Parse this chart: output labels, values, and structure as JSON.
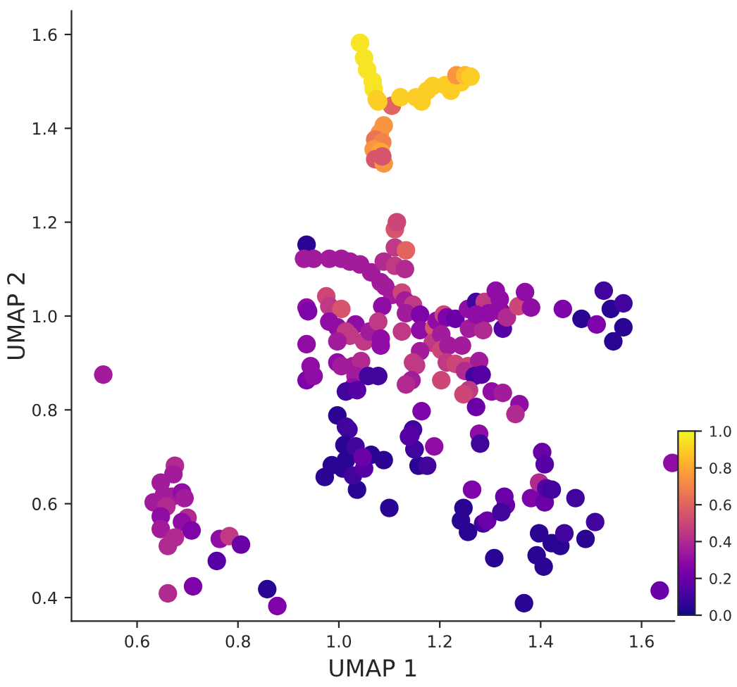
{
  "chart_data": {
    "type": "scatter",
    "xlabel": "UMAP 1",
    "ylabel": "UMAP 2",
    "x": [
      1.105,
      1.122,
      1.153,
      1.164,
      1.175,
      1.186,
      1.211,
      1.222,
      1.242,
      1.233,
      1.25,
      1.261,
      1.042,
      1.05,
      1.056,
      1.067,
      1.069,
      1.075,
      1.078,
      1.089,
      1.081,
      1.072,
      1.086,
      1.069,
      1.083,
      1.072,
      1.089,
      1.086,
      1.111,
      1.115,
      0.936,
      1.111,
      1.133,
      0.931,
      0.95,
      0.981,
      1.005,
      1.022,
      1.042,
      1.064,
      1.089,
      1.111,
      1.131,
      1.083,
      1.092,
      1.106,
      1.125,
      1.131,
      1.147,
      1.133,
      1.161,
      0.975,
      0.981,
      1.005,
      0.936,
      0.939,
      1.086,
      0.981,
      0.997,
      1.033,
      1.014,
      1.022,
      0.997,
      1.05,
      1.061,
      1.078,
      1.083,
      1.083,
      1.125,
      1.161,
      0.936,
      1.189,
      1.194,
      1.208,
      1.214,
      1.231,
      1.256,
      1.272,
      1.289,
      1.311,
      1.319,
      1.322,
      1.325,
      1.333,
      1.356,
      1.369,
      1.381,
      1.258,
      1.286,
      1.272,
      1.297,
      1.186,
      1.203,
      1.203,
      1.217,
      1.244,
      1.161,
      1.147,
      1.153,
      1.144,
      1.133,
      1.214,
      1.231,
      1.256,
      1.278,
      1.25,
      1.269,
      1.283,
      1.203,
      1.258,
      1.247,
      1.303,
      1.325,
      1.358,
      1.35,
      1.272,
      1.164,
      0.936,
      0.95,
      0.944,
      0.997,
      1.005,
      1.028,
      1.044,
      1.033,
      1.058,
      1.078,
      1.028,
      1.014,
      1.036,
      0.533,
      1.444,
      1.481,
      1.511,
      1.525,
      1.539,
      1.564,
      1.564,
      1.544,
      0.997,
      1.014,
      1.019,
      1.011,
      1.064,
      1.089,
      1.147,
      1.142,
      1.15,
      1.189,
      1.278,
      1.28,
      1.403,
      1.408,
      1.661,
      0.972,
      0.986,
      1.008,
      1.014,
      1.033,
      1.036,
      1.028,
      1.05,
      1.047,
      1.1,
      1.158,
      1.175,
      1.15,
      1.139,
      1.264,
      1.247,
      1.242,
      1.256,
      1.286,
      1.294,
      1.308,
      1.328,
      1.331,
      1.322,
      1.367,
      1.381,
      1.397,
      1.408,
      1.411,
      1.422,
      1.397,
      1.392,
      1.406,
      1.422,
      1.439,
      1.447,
      1.469,
      1.489,
      1.508,
      1.636,
      0.675,
      0.672,
      0.647,
      0.633,
      0.653,
      0.669,
      0.689,
      0.694,
      0.658,
      0.647,
      0.7,
      0.689,
      0.647,
      0.708,
      0.675,
      0.661,
      0.661,
      0.711,
      0.764,
      0.783,
      0.806,
      0.758,
      0.858,
      0.878
    ],
    "values": [
      1.448,
      1.466,
      1.466,
      1.457,
      1.48,
      1.49,
      1.492,
      1.48,
      1.498,
      1.513,
      1.513,
      1.51,
      1.582,
      1.55,
      1.525,
      1.5,
      1.484,
      1.462,
      1.457,
      1.406,
      1.39,
      1.376,
      1.37,
      1.355,
      1.35,
      1.334,
      1.325,
      1.34,
      1.185,
      1.2,
      1.152,
      1.146,
      1.14,
      1.122,
      1.122,
      1.122,
      1.122,
      1.116,
      1.11,
      1.093,
      1.116,
      1.107,
      1.1,
      1.072,
      1.063,
      1.045,
      1.05,
      1.033,
      1.024,
      1.006,
      1.003,
      1.042,
      1.021,
      1.015,
      1.018,
      1.01,
      1.021,
      0.988,
      0.976,
      0.982,
      0.967,
      0.958,
      0.946,
      0.946,
      0.967,
      0.988,
      0.952,
      0.937,
      0.967,
      0.97,
      0.94,
      0.976,
      0.99,
      1.003,
      0.997,
      0.994,
      1.015,
      1.03,
      1.03,
      1.054,
      1.036,
      1.009,
      0.973,
      0.997,
      1.021,
      1.051,
      1.018,
      0.973,
      0.97,
      1.003,
      1.006,
      0.943,
      0.961,
      0.928,
      0.937,
      0.937,
      0.925,
      0.901,
      0.895,
      0.863,
      0.854,
      0.901,
      0.898,
      0.893,
      0.904,
      0.883,
      0.872,
      0.875,
      0.863,
      0.842,
      0.833,
      0.839,
      0.836,
      0.812,
      0.791,
      0.806,
      0.797,
      0.863,
      0.872,
      0.893,
      0.901,
      0.893,
      0.893,
      0.904,
      0.872,
      0.872,
      0.872,
      0.848,
      0.839,
      0.842,
      0.875,
      1.015,
      0.994,
      0.982,
      1.054,
      1.015,
      1.027,
      0.976,
      0.946,
      0.788,
      0.764,
      0.758,
      0.725,
      0.704,
      0.693,
      0.758,
      0.746,
      0.716,
      0.722,
      0.749,
      0.728,
      0.71,
      0.684,
      0.687,
      0.657,
      0.682,
      0.675,
      0.693,
      0.722,
      0.63,
      0.66,
      0.675,
      0.699,
      0.591,
      0.681,
      0.681,
      0.716,
      0.743,
      0.63,
      0.591,
      0.564,
      0.54,
      0.558,
      0.564,
      0.484,
      0.615,
      0.597,
      0.582,
      0.388,
      0.612,
      0.645,
      0.603,
      0.633,
      0.63,
      0.537,
      0.49,
      0.466,
      0.516,
      0.51,
      0.537,
      0.612,
      0.525,
      0.561,
      0.415,
      0.681,
      0.663,
      0.645,
      0.603,
      0.618,
      0.615,
      0.624,
      0.612,
      0.594,
      0.573,
      0.57,
      0.561,
      0.546,
      0.543,
      0.528,
      0.51,
      0.409,
      0.424,
      0.525,
      0.531,
      0.513,
      0.478,
      0.418,
      0.382
    ],
    "cvalues": [
      0.6,
      0.9,
      0.9,
      0.9,
      0.9,
      0.9,
      0.9,
      0.9,
      0.9,
      0.75,
      0.85,
      0.9,
      0.95,
      0.95,
      0.95,
      0.95,
      0.95,
      0.9,
      0.9,
      0.75,
      0.75,
      0.65,
      0.7,
      0.75,
      0.8,
      0.55,
      0.75,
      0.55,
      0.55,
      0.5,
      0.05,
      0.45,
      0.6,
      0.35,
      0.35,
      0.35,
      0.35,
      0.35,
      0.35,
      0.35,
      0.4,
      0.45,
      0.4,
      0.35,
      0.35,
      0.35,
      0.5,
      0.35,
      0.45,
      0.35,
      0.25,
      0.5,
      0.45,
      0.55,
      0.3,
      0.25,
      0.3,
      0.3,
      0.3,
      0.3,
      0.45,
      0.45,
      0.35,
      0.45,
      0.35,
      0.45,
      0.3,
      0.3,
      0.45,
      0.3,
      0.3,
      0.55,
      0.3,
      0.5,
      0.25,
      0.2,
      0.3,
      0.1,
      0.45,
      0.3,
      0.3,
      0.3,
      0.15,
      0.4,
      0.5,
      0.3,
      0.3,
      0.35,
      0.4,
      0.3,
      0.3,
      0.45,
      0.35,
      0.5,
      0.35,
      0.35,
      0.35,
      0.45,
      0.45,
      0.35,
      0.4,
      0.45,
      0.5,
      0.5,
      0.35,
      0.4,
      0.1,
      0.15,
      0.5,
      0.45,
      0.5,
      0.3,
      0.35,
      0.3,
      0.4,
      0.2,
      0.25,
      0.25,
      0.3,
      0.3,
      0.3,
      0.35,
      0.35,
      0.4,
      0.35,
      0.1,
      0.1,
      0.3,
      0.1,
      0.15,
      0.35,
      0.25,
      0.05,
      0.25,
      0.1,
      0.05,
      0.1,
      0.05,
      0.05,
      0.05,
      0.1,
      0.1,
      0.05,
      0.05,
      0.05,
      0.1,
      0.15,
      0.1,
      0.3,
      0.3,
      0.1,
      0.2,
      0.15,
      0.3,
      0.05,
      0.05,
      0.05,
      0.05,
      0.1,
      0.05,
      0.1,
      0.15,
      0.2,
      0.05,
      0.05,
      0.1,
      0.1,
      0.15,
      0.25,
      0.05,
      0.05,
      0.05,
      0.1,
      0.2,
      0.05,
      0.2,
      0.2,
      0.1,
      0.05,
      0.25,
      0.4,
      0.2,
      0.15,
      0.1,
      0.05,
      0.05,
      0.05,
      0.05,
      0.05,
      0.1,
      0.1,
      0.05,
      0.1,
      0.2,
      0.4,
      0.35,
      0.35,
      0.35,
      0.35,
      0.35,
      0.3,
      0.35,
      0.4,
      0.3,
      0.4,
      0.3,
      0.35,
      0.25,
      0.4,
      0.4,
      0.4,
      0.25,
      0.3,
      0.45,
      0.2,
      0.15,
      0.05,
      0.25
    ],
    "xlim": [
      0.47,
      1.665
    ],
    "ylim": [
      0.35,
      1.65
    ],
    "xticks": [
      0.6,
      0.8,
      {
        "value": 1,
        "label": "1.0"
      },
      1.2,
      1.4,
      1.6
    ],
    "yticks": [
      0.4,
      0.6,
      0.8,
      {
        "value": 1,
        "label": "1.0"
      },
      1.2,
      1.4,
      1.6
    ],
    "clim": [
      0,
      1
    ],
    "cticks": [
      {
        "value": 0,
        "label": "0.0"
      },
      0.2,
      0.4,
      0.6,
      0.8,
      {
        "value": 1,
        "label": "1.0"
      }
    ],
    "marker": "circle",
    "grid": false,
    "legend": false
  }
}
